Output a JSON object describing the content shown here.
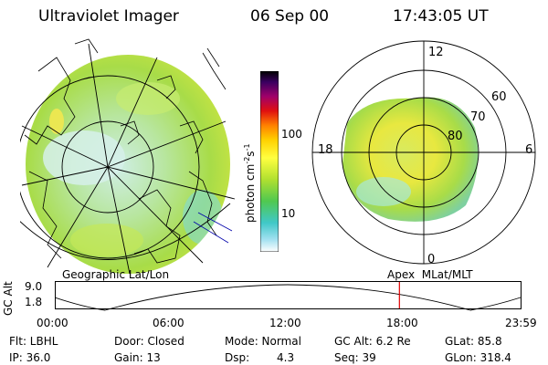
{
  "header": {
    "title": "Ultraviolet Imager",
    "date": "06 Sep 00",
    "time": "17:43:05 UT"
  },
  "colorbar": {
    "unit_label": "photon cm",
    "unit_sup1": "-2",
    "unit_mid": "s",
    "unit_sup2": "-1",
    "tick_100": "100",
    "tick_10": "10"
  },
  "left_map": {
    "caption": "Geographic Lat/Lon"
  },
  "right_map": {
    "caption": "Apex  MLat/MLT",
    "mlt_labels": {
      "top": "12",
      "left": "18",
      "right": "6",
      "bottom": "0"
    },
    "lat_labels": {
      "l60": "60",
      "l70": "70",
      "l80": "80"
    }
  },
  "timeline": {
    "axis_label": "GC Alt",
    "y_top": "9.0",
    "y_bottom": "1.8",
    "ticks": [
      "00:00",
      "06:00",
      "12:00",
      "18:00",
      "23:59"
    ],
    "marker_time_hours": 17.72
  },
  "status": {
    "row1": {
      "filter": "Flt: LBHL",
      "door": "Door: Closed",
      "mode": "Mode: Normal",
      "gc_alt": "GC Alt: 6.2 Re",
      "glat": "GLat: 85.8"
    },
    "row2": {
      "ip": "IP: 36.0",
      "gain": "Gain: 13",
      "dsp_label": "Dsp:",
      "dsp_value": "4.3",
      "seq": "Seq: 39",
      "glon": "GLon: 318.4"
    }
  },
  "colors": {
    "emission_low": "#aee6d4",
    "emission_mid": "#a8e04a",
    "emission_high": "#ffe050",
    "marker": "#e00000"
  }
}
